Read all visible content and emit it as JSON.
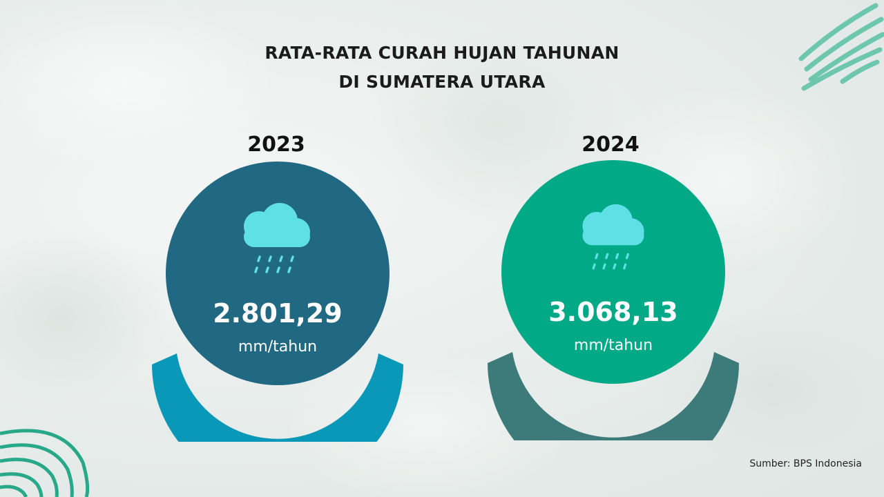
{
  "title": {
    "line1": "RATA-RATA CURAH HUJAN TAHUNAN",
    "line2": "DI SUMATERA UTARA"
  },
  "cards": [
    {
      "year": "2023",
      "value": "2.801,29",
      "unit": "mm/tahun",
      "icon": "rain-cloud-icon",
      "circle_color": "#216882",
      "arc_color": "#0998b8"
    },
    {
      "year": "2024",
      "value": "3.068,13",
      "unit": "mm/tahun",
      "icon": "rain-cloud-icon",
      "circle_color": "#02a986",
      "arc_color": "#3d7a7a"
    }
  ],
  "source": "Sumber: BPS Indonesia",
  "colors": {
    "cloud": "#5fe0e6",
    "accent_stripes": "#6cc7ae",
    "accent_rings": "#26a889"
  }
}
